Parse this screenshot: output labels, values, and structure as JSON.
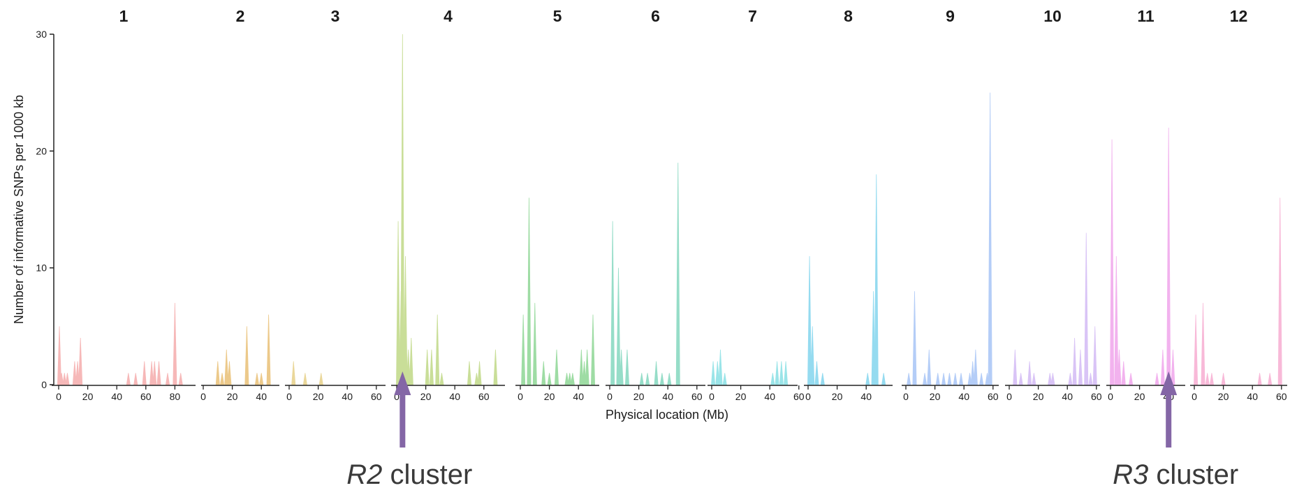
{
  "chart_data": {
    "type": "area",
    "xlabel": "Physical location (Mb)",
    "ylabel": "Number of informative SNPs per 1000 kb",
    "ylim": [
      0,
      30
    ],
    "yticks": [
      0,
      10,
      20,
      30
    ],
    "grid": false,
    "legend": "none",
    "panels": [
      {
        "name": "1",
        "color": "#f6b8b8",
        "xmax": 88,
        "xticks": [
          0,
          20,
          40,
          60,
          80
        ],
        "peaks": [
          [
            0.5,
            5
          ],
          [
            2,
            1
          ],
          [
            4,
            1
          ],
          [
            6,
            1
          ],
          [
            11,
            2
          ],
          [
            13,
            2
          ],
          [
            15,
            4
          ],
          [
            48,
            1
          ],
          [
            53,
            1
          ],
          [
            59,
            2
          ],
          [
            64,
            2
          ],
          [
            66,
            2
          ],
          [
            69,
            2
          ],
          [
            75,
            1
          ],
          [
            80,
            7
          ],
          [
            84,
            1
          ]
        ]
      },
      {
        "name": "2",
        "color": "#ecc98a",
        "xmax": 48,
        "xticks": [
          0,
          20,
          40
        ],
        "peaks": [
          [
            10,
            2
          ],
          [
            13,
            1
          ],
          [
            16,
            3
          ],
          [
            18,
            2
          ],
          [
            30,
            5
          ],
          [
            37,
            1
          ],
          [
            40,
            1
          ],
          [
            45,
            6
          ]
        ]
      },
      {
        "name": "3",
        "color": "#ead79a",
        "xmax": 65,
        "xticks": [
          0,
          20,
          40,
          60
        ],
        "peaks": [
          [
            3,
            2
          ],
          [
            11,
            1
          ],
          [
            22,
            1
          ]
        ]
      },
      {
        "name": "4",
        "color": "#c9de98",
        "xmax": 73,
        "xticks": [
          0,
          20,
          40,
          60
        ],
        "peaks": [
          [
            1,
            14
          ],
          [
            3,
            8
          ],
          [
            4,
            30
          ],
          [
            6,
            11
          ],
          [
            8,
            3
          ],
          [
            10,
            4
          ],
          [
            21,
            3
          ],
          [
            24,
            3
          ],
          [
            28,
            6
          ],
          [
            31,
            1
          ],
          [
            50,
            2
          ],
          [
            55,
            1
          ],
          [
            57,
            2
          ],
          [
            68,
            3
          ]
        ]
      },
      {
        "name": "5",
        "color": "#9edca4",
        "xmax": 53,
        "xticks": [
          0,
          20,
          40
        ],
        "peaks": [
          [
            2,
            6
          ],
          [
            6,
            16
          ],
          [
            10,
            7
          ],
          [
            16,
            2
          ],
          [
            20,
            1
          ],
          [
            25,
            3
          ],
          [
            32,
            1
          ],
          [
            34,
            1
          ],
          [
            36,
            1
          ],
          [
            42,
            3
          ],
          [
            44,
            2
          ],
          [
            46,
            3
          ],
          [
            50,
            6
          ]
        ]
      },
      {
        "name": "6",
        "color": "#96ddc8",
        "xmax": 62,
        "xticks": [
          0,
          20,
          40,
          60
        ],
        "peaks": [
          [
            2,
            14
          ],
          [
            6,
            10
          ],
          [
            8,
            3
          ],
          [
            12,
            3
          ],
          [
            22,
            1
          ],
          [
            26,
            1
          ],
          [
            32,
            2
          ],
          [
            36,
            1
          ],
          [
            41,
            1
          ],
          [
            47,
            19
          ]
        ]
      },
      {
        "name": "7",
        "color": "#9ae4e8",
        "xmax": 62,
        "xticks": [
          0,
          20,
          40,
          60
        ],
        "peaks": [
          [
            1,
            2
          ],
          [
            4,
            2
          ],
          [
            6,
            3
          ],
          [
            9,
            1
          ],
          [
            42,
            1
          ],
          [
            45,
            2
          ],
          [
            48,
            2
          ],
          [
            51,
            2
          ]
        ]
      },
      {
        "name": "8",
        "color": "#95dbf0",
        "xmax": 60,
        "xticks": [
          0,
          20,
          40
        ],
        "peaks": [
          [
            1,
            11
          ],
          [
            3,
            5
          ],
          [
            6,
            2
          ],
          [
            10,
            1
          ],
          [
            41,
            1
          ],
          [
            45,
            8
          ],
          [
            47,
            18
          ],
          [
            52,
            1
          ]
        ]
      },
      {
        "name": "9",
        "color": "#b4cdf7",
        "xmax": 67,
        "xticks": [
          0,
          20,
          40,
          60
        ],
        "peaks": [
          [
            2,
            1
          ],
          [
            6,
            8
          ],
          [
            13,
            1
          ],
          [
            16,
            3
          ],
          [
            22,
            1
          ],
          [
            26,
            1
          ],
          [
            30,
            1
          ],
          [
            34,
            1
          ],
          [
            38,
            1
          ],
          [
            44,
            1
          ],
          [
            46,
            2
          ],
          [
            48,
            3
          ],
          [
            52,
            1
          ],
          [
            56,
            1
          ],
          [
            58,
            25
          ]
        ]
      },
      {
        "name": "10",
        "color": "#d9c4f6",
        "xmax": 63,
        "xticks": [
          0,
          20,
          40,
          60
        ],
        "peaks": [
          [
            4,
            3
          ],
          [
            8,
            1
          ],
          [
            14,
            2
          ],
          [
            17,
            1
          ],
          [
            28,
            1
          ],
          [
            30,
            1
          ],
          [
            42,
            1
          ],
          [
            45,
            4
          ],
          [
            49,
            3
          ],
          [
            53,
            13
          ],
          [
            56,
            1
          ],
          [
            59,
            5
          ]
        ]
      },
      {
        "name": "11",
        "color": "#f2b2ee",
        "xmax": 52,
        "xticks": [
          0,
          20,
          40
        ],
        "peaks": [
          [
            1,
            21
          ],
          [
            4,
            11
          ],
          [
            6,
            3
          ],
          [
            9,
            2
          ],
          [
            14,
            1
          ],
          [
            32,
            1
          ],
          [
            36,
            3
          ],
          [
            40,
            22
          ],
          [
            43,
            3
          ]
        ]
      },
      {
        "name": "12",
        "color": "#f8b9d8",
        "xmax": 62,
        "xticks": [
          0,
          20,
          40,
          60
        ],
        "peaks": [
          [
            1,
            6
          ],
          [
            6,
            7
          ],
          [
            9,
            1
          ],
          [
            12,
            1
          ],
          [
            20,
            1
          ],
          [
            45,
            1
          ],
          [
            52,
            1
          ],
          [
            59,
            16
          ]
        ]
      }
    ],
    "annotations": [
      {
        "italic": "R2",
        "rest": " cluster",
        "panel": 3,
        "x": 4
      },
      {
        "italic": "R3",
        "rest": " cluster",
        "panel": 10,
        "x": 40
      }
    ],
    "arrow_color": "#8466a6"
  }
}
